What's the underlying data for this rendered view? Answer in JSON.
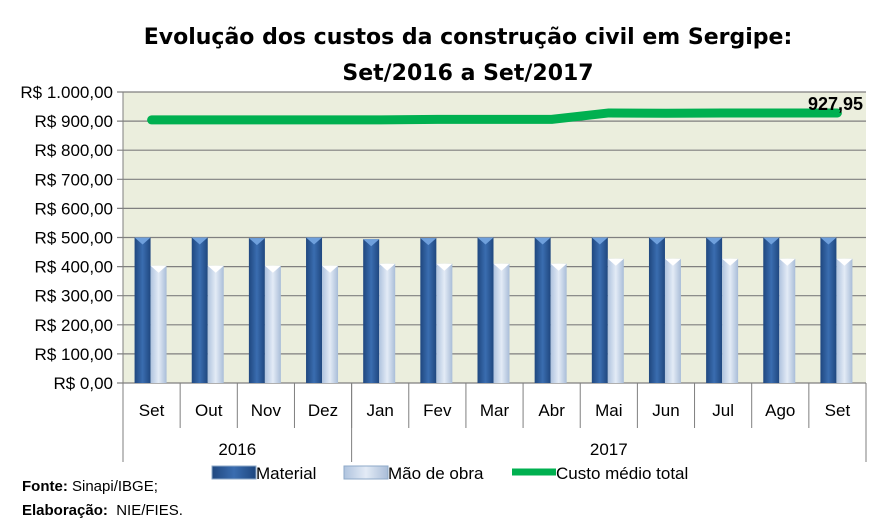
{
  "chart_data": {
    "type": "bar",
    "title": "Evolução dos custos da construção civil em Sergipe:",
    "subtitle": "Set/2016 a Set/2017",
    "categories": [
      "Set",
      "Out",
      "Nov",
      "Dez",
      "Jan",
      "Fev",
      "Mar",
      "Abr",
      "Mai",
      "Jun",
      "Jul",
      "Ago",
      "Set"
    ],
    "groups": [
      {
        "label": "2016",
        "count": 4
      },
      {
        "label": "2017",
        "count": 9
      }
    ],
    "series": [
      {
        "name": "Material",
        "type": "bar",
        "color": "#2E5E9E",
        "values": [
          500,
          500,
          498,
          500,
          494,
          498,
          500,
          500,
          500,
          500,
          500,
          500,
          500
        ]
      },
      {
        "name": "Mão de obra",
        "type": "bar",
        "color": "#C5D5EA",
        "values": [
          403,
          403,
          403,
          403,
          410,
          410,
          410,
          410,
          427,
          427,
          427,
          427,
          427
        ]
      },
      {
        "name": "Custo médio total",
        "type": "line",
        "color": "#00B050",
        "values": [
          904,
          904,
          904,
          904,
          904,
          906,
          906,
          906,
          928,
          927,
          928,
          928,
          927.95
        ]
      }
    ],
    "data_label": "927,95",
    "yticks": [
      "R$ 0,00",
      "R$ 100,00",
      "R$ 200,00",
      "R$ 300,00",
      "R$ 400,00",
      "R$ 500,00",
      "R$ 600,00",
      "R$ 700,00",
      "R$ 800,00",
      "R$ 900,00",
      "R$ 1.000,00"
    ],
    "ylim": [
      0,
      1000
    ],
    "grid": true,
    "legend": "bottom"
  },
  "source": {
    "label": "Fonte:",
    "value": " Sinapi/IBGE;"
  },
  "credit": {
    "label": "Elaboração:",
    "value": "  NIE/FIES."
  }
}
